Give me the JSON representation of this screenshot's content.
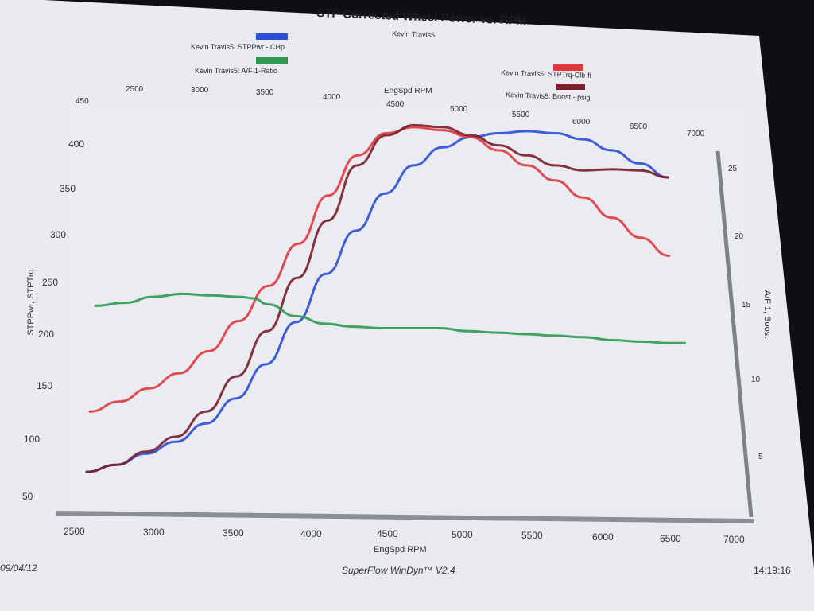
{
  "chart_data": {
    "type": "line",
    "title": "STP Corrected Wheel Power vs. RPM",
    "subtitle": "Kevin Travis5",
    "xlabel": "EngSpd  RPM",
    "top_xlabel": "EngSpd  RPM",
    "ylabel": "STPPwr, STPTrq",
    "y2label": "A/F 1, Boost",
    "xlim": [
      2500,
      7000
    ],
    "ylim": [
      50,
      450
    ],
    "y2lim": [
      0,
      27
    ],
    "x_ticks": [
      "2500",
      "3000",
      "3500",
      "4000",
      "4500",
      "5000",
      "5500",
      "6000",
      "6500",
      "7000"
    ],
    "y_ticks": [
      "50",
      "100",
      "150",
      "200",
      "250",
      "300",
      "350",
      "400",
      "450"
    ],
    "y2_ticks": [
      "5",
      "10",
      "15",
      "20",
      "25"
    ],
    "legend": [
      {
        "label": "Kevin Travis5:  STPPwr - CHp",
        "color": "#2b4fd6"
      },
      {
        "label": "Kevin Travis5:  A/F 1-Ratio",
        "color": "#2e9a52"
      },
      {
        "label": "Kevin Travis5:  STPTrq-Clb-ft",
        "color": "#e03a3e"
      },
      {
        "label": "Kevin Travis5:  Boost - psig",
        "color": "#7a1f2b"
      }
    ],
    "series": [
      {
        "name": "Kevin Travis5:  STPPwr - CHp",
        "color": "#2b4fd6",
        "axis": "left",
        "x": [
          2600,
          2800,
          3000,
          3200,
          3400,
          3600,
          3800,
          4000,
          4200,
          4400,
          4600,
          4800,
          5000,
          5200,
          5400,
          5600,
          5800,
          6000,
          6200,
          6400,
          6600
        ],
        "y": [
          65,
          72,
          83,
          95,
          113,
          138,
          172,
          214,
          262,
          305,
          342,
          370,
          388,
          398,
          402,
          404,
          402,
          396,
          385,
          372,
          358
        ]
      },
      {
        "name": "Kevin Travis5:  STPTrq-Clb-ft",
        "color": "#e03a3e",
        "axis": "left",
        "x": [
          2600,
          2800,
          3000,
          3200,
          3400,
          3600,
          3800,
          4000,
          4200,
          4400,
          4600,
          4800,
          5000,
          5200,
          5400,
          5600,
          5800,
          6000,
          6200,
          6400,
          6600
        ],
        "y": [
          125,
          135,
          148,
          163,
          185,
          215,
          250,
          292,
          340,
          380,
          402,
          408,
          405,
          398,
          385,
          370,
          355,
          338,
          318,
          298,
          280
        ]
      },
      {
        "name": "Kevin Travis5:  Boost - psig",
        "color": "#7a1f2b",
        "axis": "left",
        "x": [
          2600,
          2800,
          3000,
          3200,
          3400,
          3600,
          3800,
          4000,
          4200,
          4400,
          4600,
          4800,
          5000,
          5200,
          5400,
          5600,
          5800,
          6000,
          6200,
          6400,
          6600
        ],
        "y": [
          65,
          72,
          85,
          100,
          125,
          160,
          205,
          258,
          315,
          370,
          400,
          410,
          408,
          400,
          390,
          380,
          370,
          365,
          366,
          365,
          358
        ]
      },
      {
        "name": "Kevin Travis5:  A/F 1-Ratio",
        "color": "#2e9a52",
        "axis": "right",
        "x": [
          2600,
          2800,
          3000,
          3200,
          3400,
          3600,
          3700,
          3800,
          4000,
          4200,
          4400,
          4600,
          4800,
          5000,
          5200,
          5400,
          5600,
          5800,
          6000,
          6200,
          6400,
          6600,
          6700
        ],
        "y": [
          15.7,
          15.9,
          16.3,
          16.5,
          16.4,
          16.3,
          16.2,
          15.8,
          15.0,
          14.5,
          14.3,
          14.2,
          14.2,
          14.2,
          14.0,
          13.9,
          13.8,
          13.7,
          13.6,
          13.4,
          13.3,
          13.2,
          13.2
        ]
      }
    ]
  },
  "footer": {
    "date": "09/04/12",
    "software": "SuperFlow WinDyn™ V2.4",
    "time": "14:19:16"
  }
}
